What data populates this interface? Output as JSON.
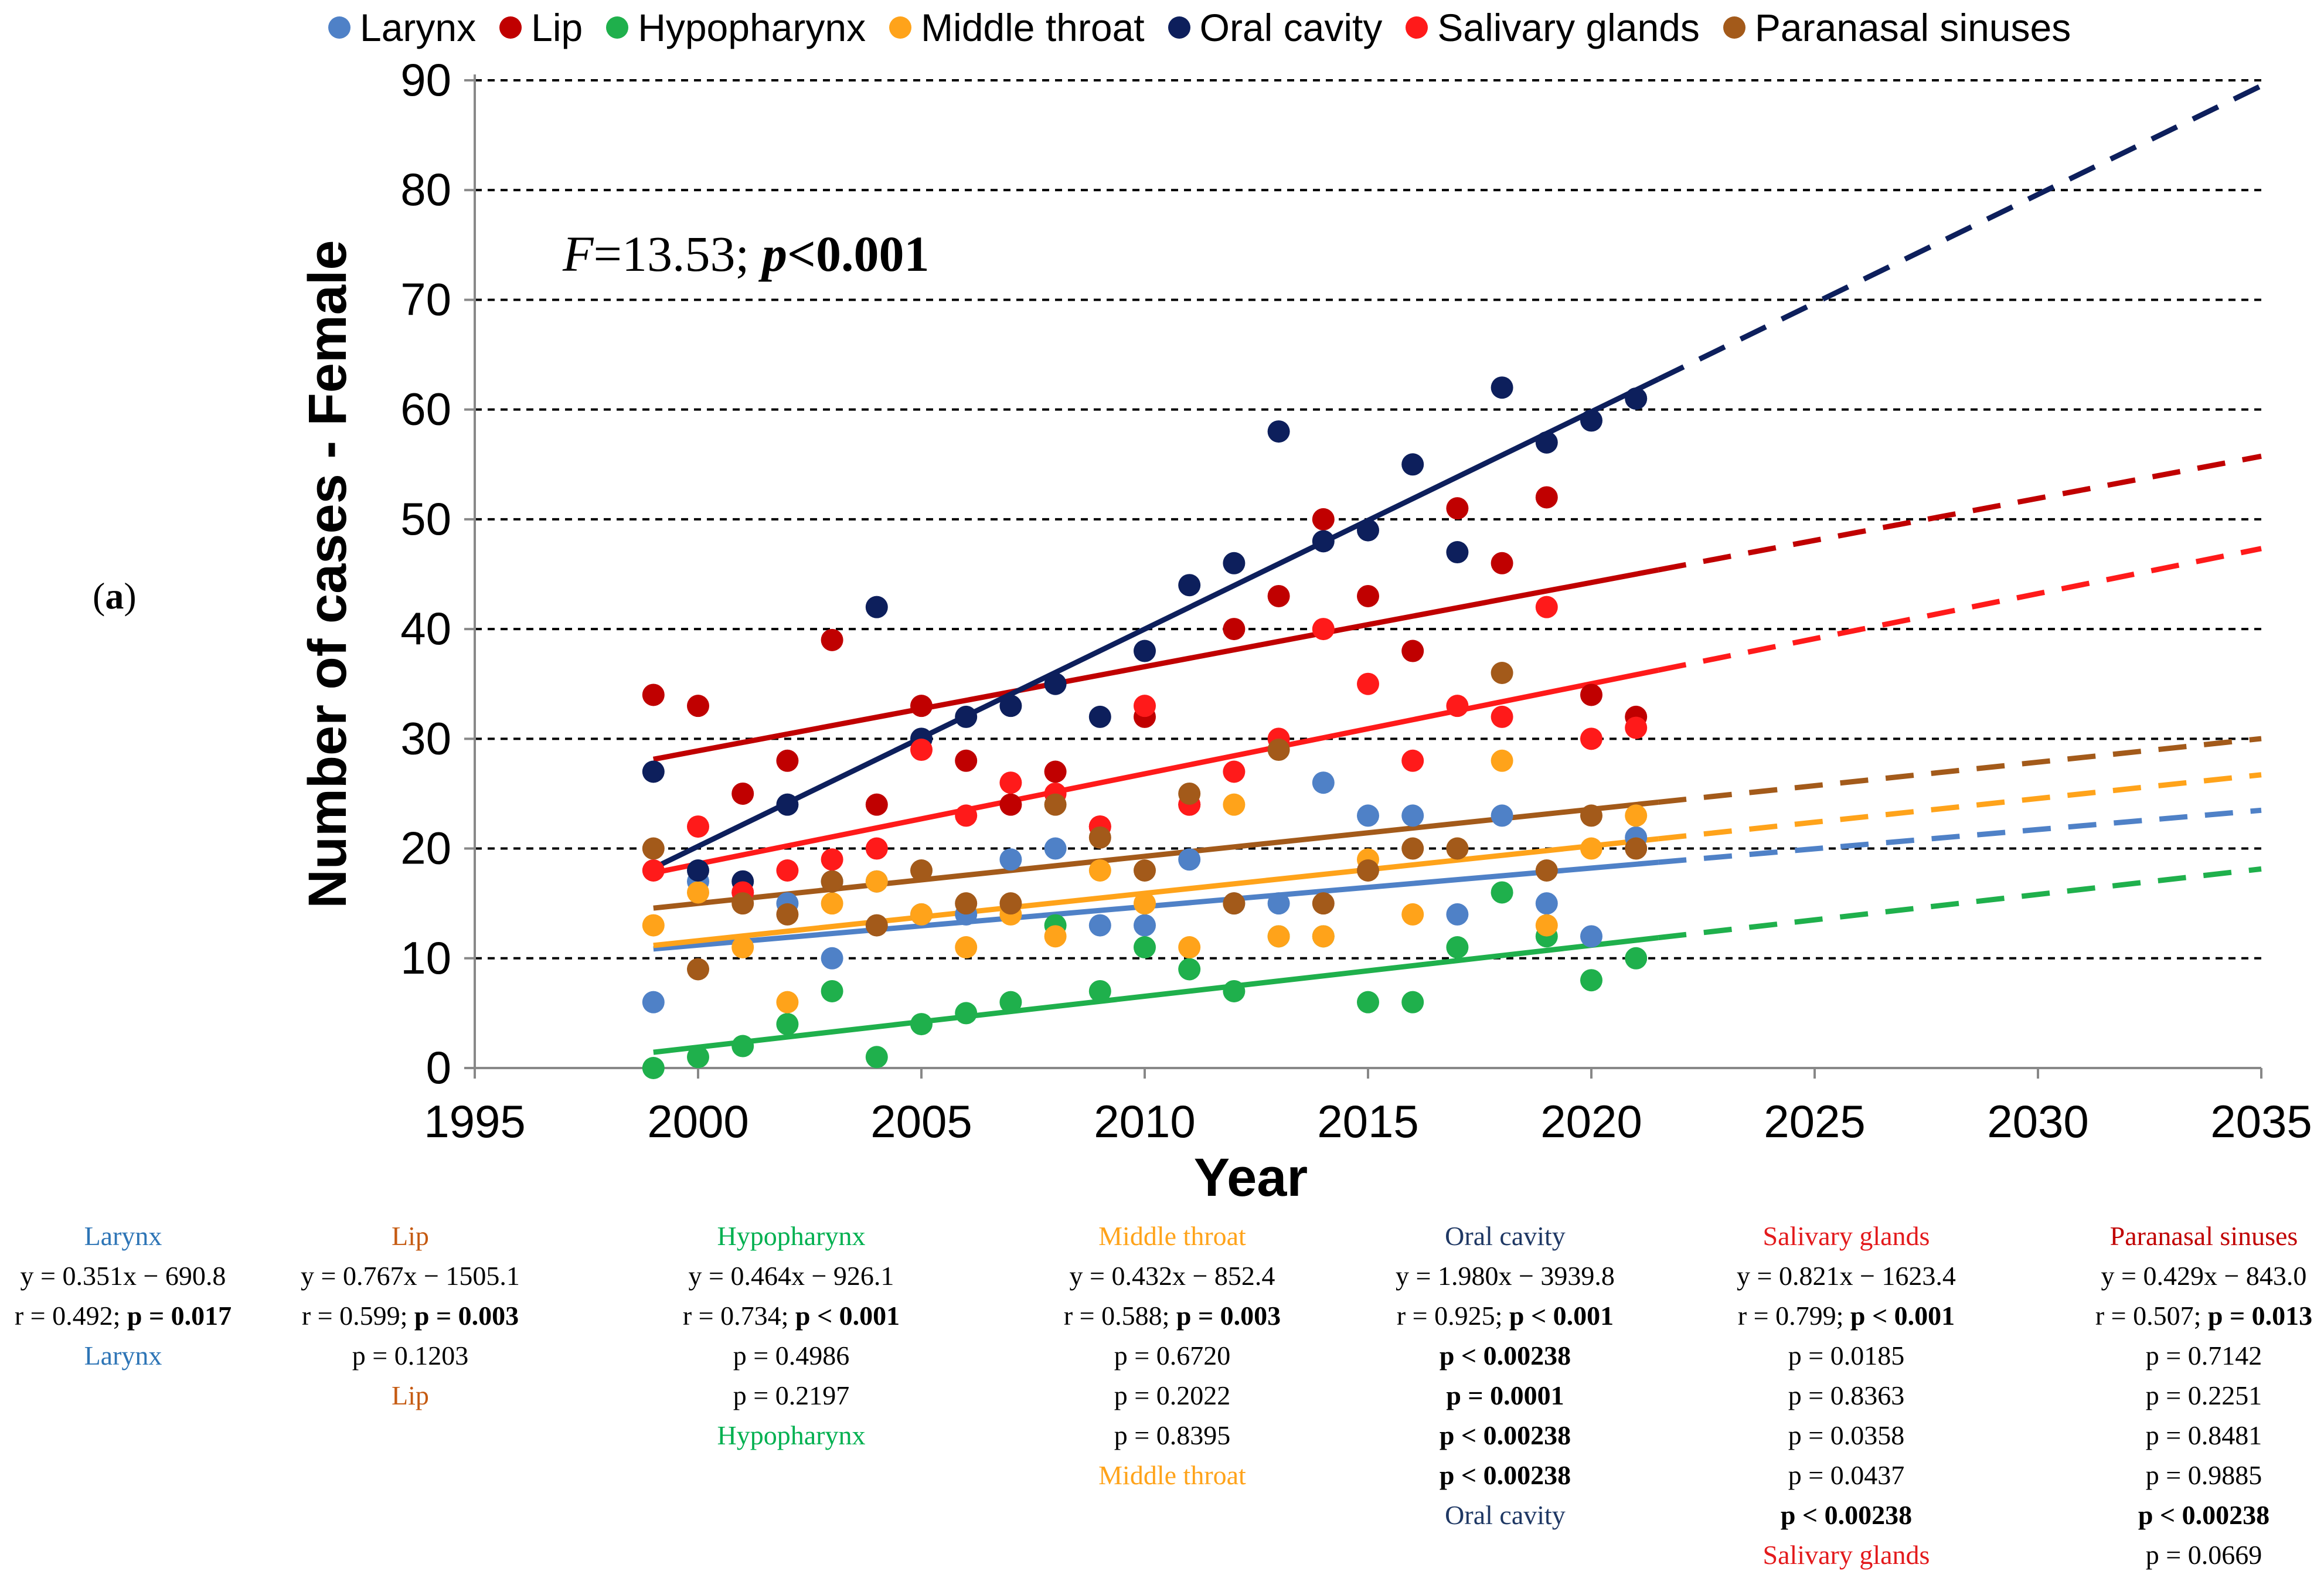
{
  "panel_label": "a",
  "chart_data": {
    "type": "scatter",
    "title": "",
    "xlabel": "Year",
    "ylabel": "Number of cases - Female",
    "xlim": [
      1995,
      2035
    ],
    "ylim": [
      0,
      90
    ],
    "xticks": [
      1995,
      2000,
      2005,
      2010,
      2015,
      2020,
      2025,
      2030,
      2035
    ],
    "yticks": [
      0,
      10,
      20,
      30,
      40,
      50,
      60,
      70,
      80,
      90
    ],
    "grid": "horizontal dashed",
    "legend_position": "top",
    "annotation": {
      "f_label": "F",
      "f_value": "=13.53; ",
      "p_label": "p",
      "p_value": "<0.001"
    },
    "fit_range": [
      1999,
      2021.5
    ],
    "forecast_range": [
      2021.5,
      2035
    ],
    "series": [
      {
        "name": "Larynx",
        "color": "#4f81c7",
        "years": [
          1999,
          2000,
          2001,
          2002,
          2003,
          2004,
          2005,
          2006,
          2007,
          2008,
          2009,
          2010,
          2011,
          2012,
          2013,
          2014,
          2015,
          2016,
          2017,
          2018,
          2019,
          2020,
          2021
        ],
        "values": [
          6,
          17,
          16,
          15,
          10,
          17,
          14,
          14,
          19,
          20,
          13,
          13,
          19,
          15,
          15,
          26,
          23,
          23,
          14,
          23,
          15,
          12,
          21
        ],
        "fit": {
          "slope": 0.351,
          "intercept": -690.8
        }
      },
      {
        "name": "Lip",
        "color": "#c00000",
        "years": [
          1999,
          2000,
          2001,
          2002,
          2003,
          2004,
          2005,
          2006,
          2007,
          2008,
          2009,
          2010,
          2011,
          2012,
          2013,
          2014,
          2015,
          2016,
          2017,
          2018,
          2019,
          2020,
          2021
        ],
        "values": [
          34,
          33,
          25,
          28,
          39,
          24,
          33,
          28,
          24,
          27,
          22,
          32,
          24,
          40,
          43,
          50,
          43,
          38,
          51,
          46,
          52,
          34,
          32
        ],
        "fit": {
          "slope": 0.767,
          "intercept": -1505.1
        }
      },
      {
        "name": "Hypopharynx",
        "color": "#1fb04c",
        "years": [
          1999,
          2000,
          2001,
          2002,
          2003,
          2004,
          2005,
          2006,
          2007,
          2008,
          2009,
          2010,
          2011,
          2012,
          2013,
          2014,
          2015,
          2016,
          2017,
          2018,
          2019,
          2020,
          2021
        ],
        "values": [
          0,
          1,
          2,
          4,
          7,
          1,
          4,
          5,
          6,
          13,
          7,
          11,
          9,
          7,
          12,
          12,
          6,
          6,
          11,
          16,
          12,
          8,
          10
        ],
        "fit": {
          "slope": 0.464,
          "intercept": -926.1
        }
      },
      {
        "name": "Middle throat",
        "color": "#ffa31a",
        "years": [
          1999,
          2000,
          2001,
          2002,
          2003,
          2004,
          2005,
          2006,
          2007,
          2008,
          2009,
          2010,
          2011,
          2012,
          2013,
          2014,
          2015,
          2016,
          2017,
          2018,
          2019,
          2020,
          2021
        ],
        "values": [
          13,
          16,
          11,
          6,
          15,
          17,
          14,
          11,
          14,
          12,
          18,
          15,
          11,
          24,
          12,
          12,
          19,
          14,
          20,
          28,
          13,
          20,
          23
        ],
        "fit": {
          "slope": 0.432,
          "intercept": -852.4
        }
      },
      {
        "name": "Oral cavity",
        "color": "#0d1f5c",
        "years": [
          1999,
          2000,
          2001,
          2002,
          2003,
          2004,
          2005,
          2006,
          2007,
          2008,
          2009,
          2010,
          2011,
          2012,
          2013,
          2014,
          2015,
          2016,
          2017,
          2018,
          2019,
          2020,
          2021
        ],
        "values": [
          27,
          18,
          17,
          24,
          17,
          42,
          30,
          32,
          33,
          35,
          32,
          38,
          44,
          46,
          58,
          48,
          49,
          55,
          47,
          62,
          57,
          59,
          61
        ],
        "fit": {
          "slope": 1.98,
          "intercept": -3939.8
        }
      },
      {
        "name": "Salivary glands",
        "color": "#ff1a1a",
        "years": [
          1999,
          2000,
          2001,
          2002,
          2003,
          2004,
          2005,
          2006,
          2007,
          2008,
          2009,
          2010,
          2011,
          2012,
          2013,
          2014,
          2015,
          2016,
          2017,
          2018,
          2019,
          2020,
          2021
        ],
        "values": [
          18,
          22,
          16,
          18,
          19,
          20,
          29,
          23,
          26,
          25,
          22,
          33,
          24,
          27,
          30,
          40,
          35,
          28,
          33,
          32,
          42,
          30,
          31
        ],
        "fit": {
          "slope": 0.821,
          "intercept": -1623.4
        }
      },
      {
        "name": "Paranasal sinuses",
        "color": "#a35a1a",
        "years": [
          1999,
          2000,
          2001,
          2002,
          2003,
          2004,
          2005,
          2006,
          2007,
          2008,
          2009,
          2010,
          2011,
          2012,
          2013,
          2014,
          2015,
          2016,
          2017,
          2018,
          2019,
          2020,
          2021
        ],
        "values": [
          20,
          9,
          15,
          14,
          17,
          13,
          18,
          15,
          15,
          24,
          21,
          18,
          25,
          15,
          29,
          15,
          18,
          20,
          20,
          36,
          18,
          23,
          20
        ],
        "fit": {
          "slope": 0.429,
          "intercept": -843.0
        }
      }
    ]
  },
  "stats_columns": [
    {
      "color": "#2e75b6",
      "lines": [
        {
          "text": "Larynx",
          "bold": false,
          "color": "#2e75b6"
        },
        {
          "text": "y = 0.351x − 690.8",
          "bold": false
        },
        {
          "text": "r = 0.492; p = 0.017",
          "bold": false,
          "bold_part": "p = 0.017"
        },
        {
          "text": "Larynx",
          "bold": false,
          "color": "#2e75b6"
        }
      ]
    },
    {
      "color": "#c55a11",
      "lines": [
        {
          "text": "Lip",
          "bold": false,
          "color": "#c55a11"
        },
        {
          "text": "y = 0.767x − 1505.1",
          "bold": false
        },
        {
          "text": "r = 0.599; p = 0.003",
          "bold": false,
          "bold_part": "p = 0.003"
        },
        {
          "text": "p = 0.1203",
          "bold": false
        },
        {
          "text": "Lip",
          "bold": false,
          "color": "#c55a11"
        }
      ]
    },
    {
      "color": "#00b050",
      "lines": [
        {
          "text": "Hypopharynx",
          "bold": false,
          "color": "#00b050"
        },
        {
          "text": "y = 0.464x − 926.1",
          "bold": false
        },
        {
          "text": "r = 0.734; p < 0.001",
          "bold": false,
          "bold_part": "p < 0.001"
        },
        {
          "text": "p = 0.4986",
          "bold": false
        },
        {
          "text": "p = 0.2197",
          "bold": false
        },
        {
          "text": "Hypopharynx",
          "bold": false,
          "color": "#00b050"
        }
      ]
    },
    {
      "color": "#ffa31a",
      "lines": [
        {
          "text": "Middle throat",
          "bold": false,
          "color": "#ffa31a"
        },
        {
          "text": "y = 0.432x − 852.4",
          "bold": false
        },
        {
          "text": "r = 0.588; p = 0.003",
          "bold": false,
          "bold_part": "p = 0.003"
        },
        {
          "text": "p = 0.6720",
          "bold": false
        },
        {
          "text": "p = 0.2022",
          "bold": false
        },
        {
          "text": "p = 0.8395",
          "bold": false
        },
        {
          "text": "Middle throat",
          "bold": false,
          "color": "#ffa31a"
        }
      ]
    },
    {
      "color": "#1f3864",
      "lines": [
        {
          "text": "Oral cavity",
          "bold": false,
          "color": "#1f3864"
        },
        {
          "text": "y = 1.980x − 3939.8",
          "bold": false
        },
        {
          "text": "r = 0.925; p < 0.001",
          "bold": false,
          "bold_part": "p < 0.001"
        },
        {
          "text": "p < 0.00238",
          "bold": true
        },
        {
          "text": "p = 0.0001",
          "bold": true
        },
        {
          "text": "p < 0.00238",
          "bold": true
        },
        {
          "text": "p < 0.00238",
          "bold": true
        },
        {
          "text": "Oral cavity",
          "bold": false,
          "color": "#1f3864"
        }
      ]
    },
    {
      "color": "#e31a1c",
      "lines": [
        {
          "text": "Salivary glands",
          "bold": false,
          "color": "#e31a1c"
        },
        {
          "text": "y = 0.821x − 1623.4",
          "bold": false
        },
        {
          "text": "r = 0.799; p < 0.001",
          "bold": false,
          "bold_part": "p < 0.001"
        },
        {
          "text": "p = 0.0185",
          "bold": false
        },
        {
          "text": "p = 0.8363",
          "bold": false
        },
        {
          "text": "p = 0.0358",
          "bold": false
        },
        {
          "text": "p = 0.0437",
          "bold": false
        },
        {
          "text": "p < 0.00238",
          "bold": true
        },
        {
          "text": "Salivary glands",
          "bold": false,
          "color": "#e31a1c"
        }
      ]
    },
    {
      "color": "#c00000",
      "lines": [
        {
          "text": "Paranasal sinuses",
          "bold": false,
          "color": "#c00000"
        },
        {
          "text": "y = 0.429x − 843.0",
          "bold": false
        },
        {
          "text": "r = 0.507; p = 0.013",
          "bold": false,
          "bold_part": "p = 0.013"
        },
        {
          "text": "p = 0.7142",
          "bold": false
        },
        {
          "text": "p = 0.2251",
          "bold": false
        },
        {
          "text": "p = 0.8481",
          "bold": false
        },
        {
          "text": "p = 0.9885",
          "bold": false
        },
        {
          "text": "p < 0.00238",
          "bold": true
        },
        {
          "text": "p = 0.0669",
          "bold": false
        }
      ]
    }
  ]
}
